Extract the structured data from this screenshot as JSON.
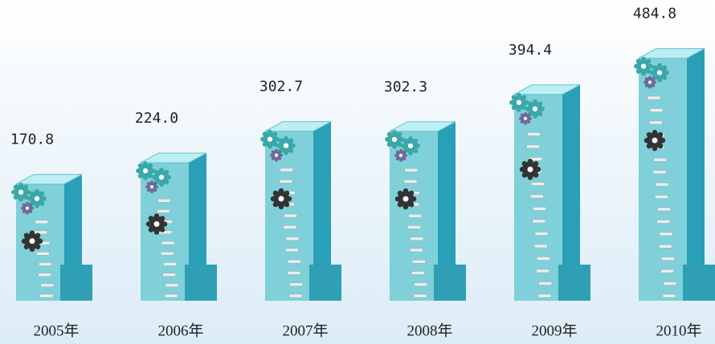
{
  "chart_data": {
    "type": "pictorial-bar",
    "categories": [
      "2005年",
      "2006年",
      "2007年",
      "2008年",
      "2009年",
      "2010年"
    ],
    "values": [
      170.8,
      224.0,
      302.7,
      302.3,
      394.4,
      484.8
    ],
    "value_labels": [
      "170.8",
      "224.0",
      "302.7",
      "302.3",
      "394.4",
      "484.8"
    ],
    "color": "#7fd0d8"
  }
}
